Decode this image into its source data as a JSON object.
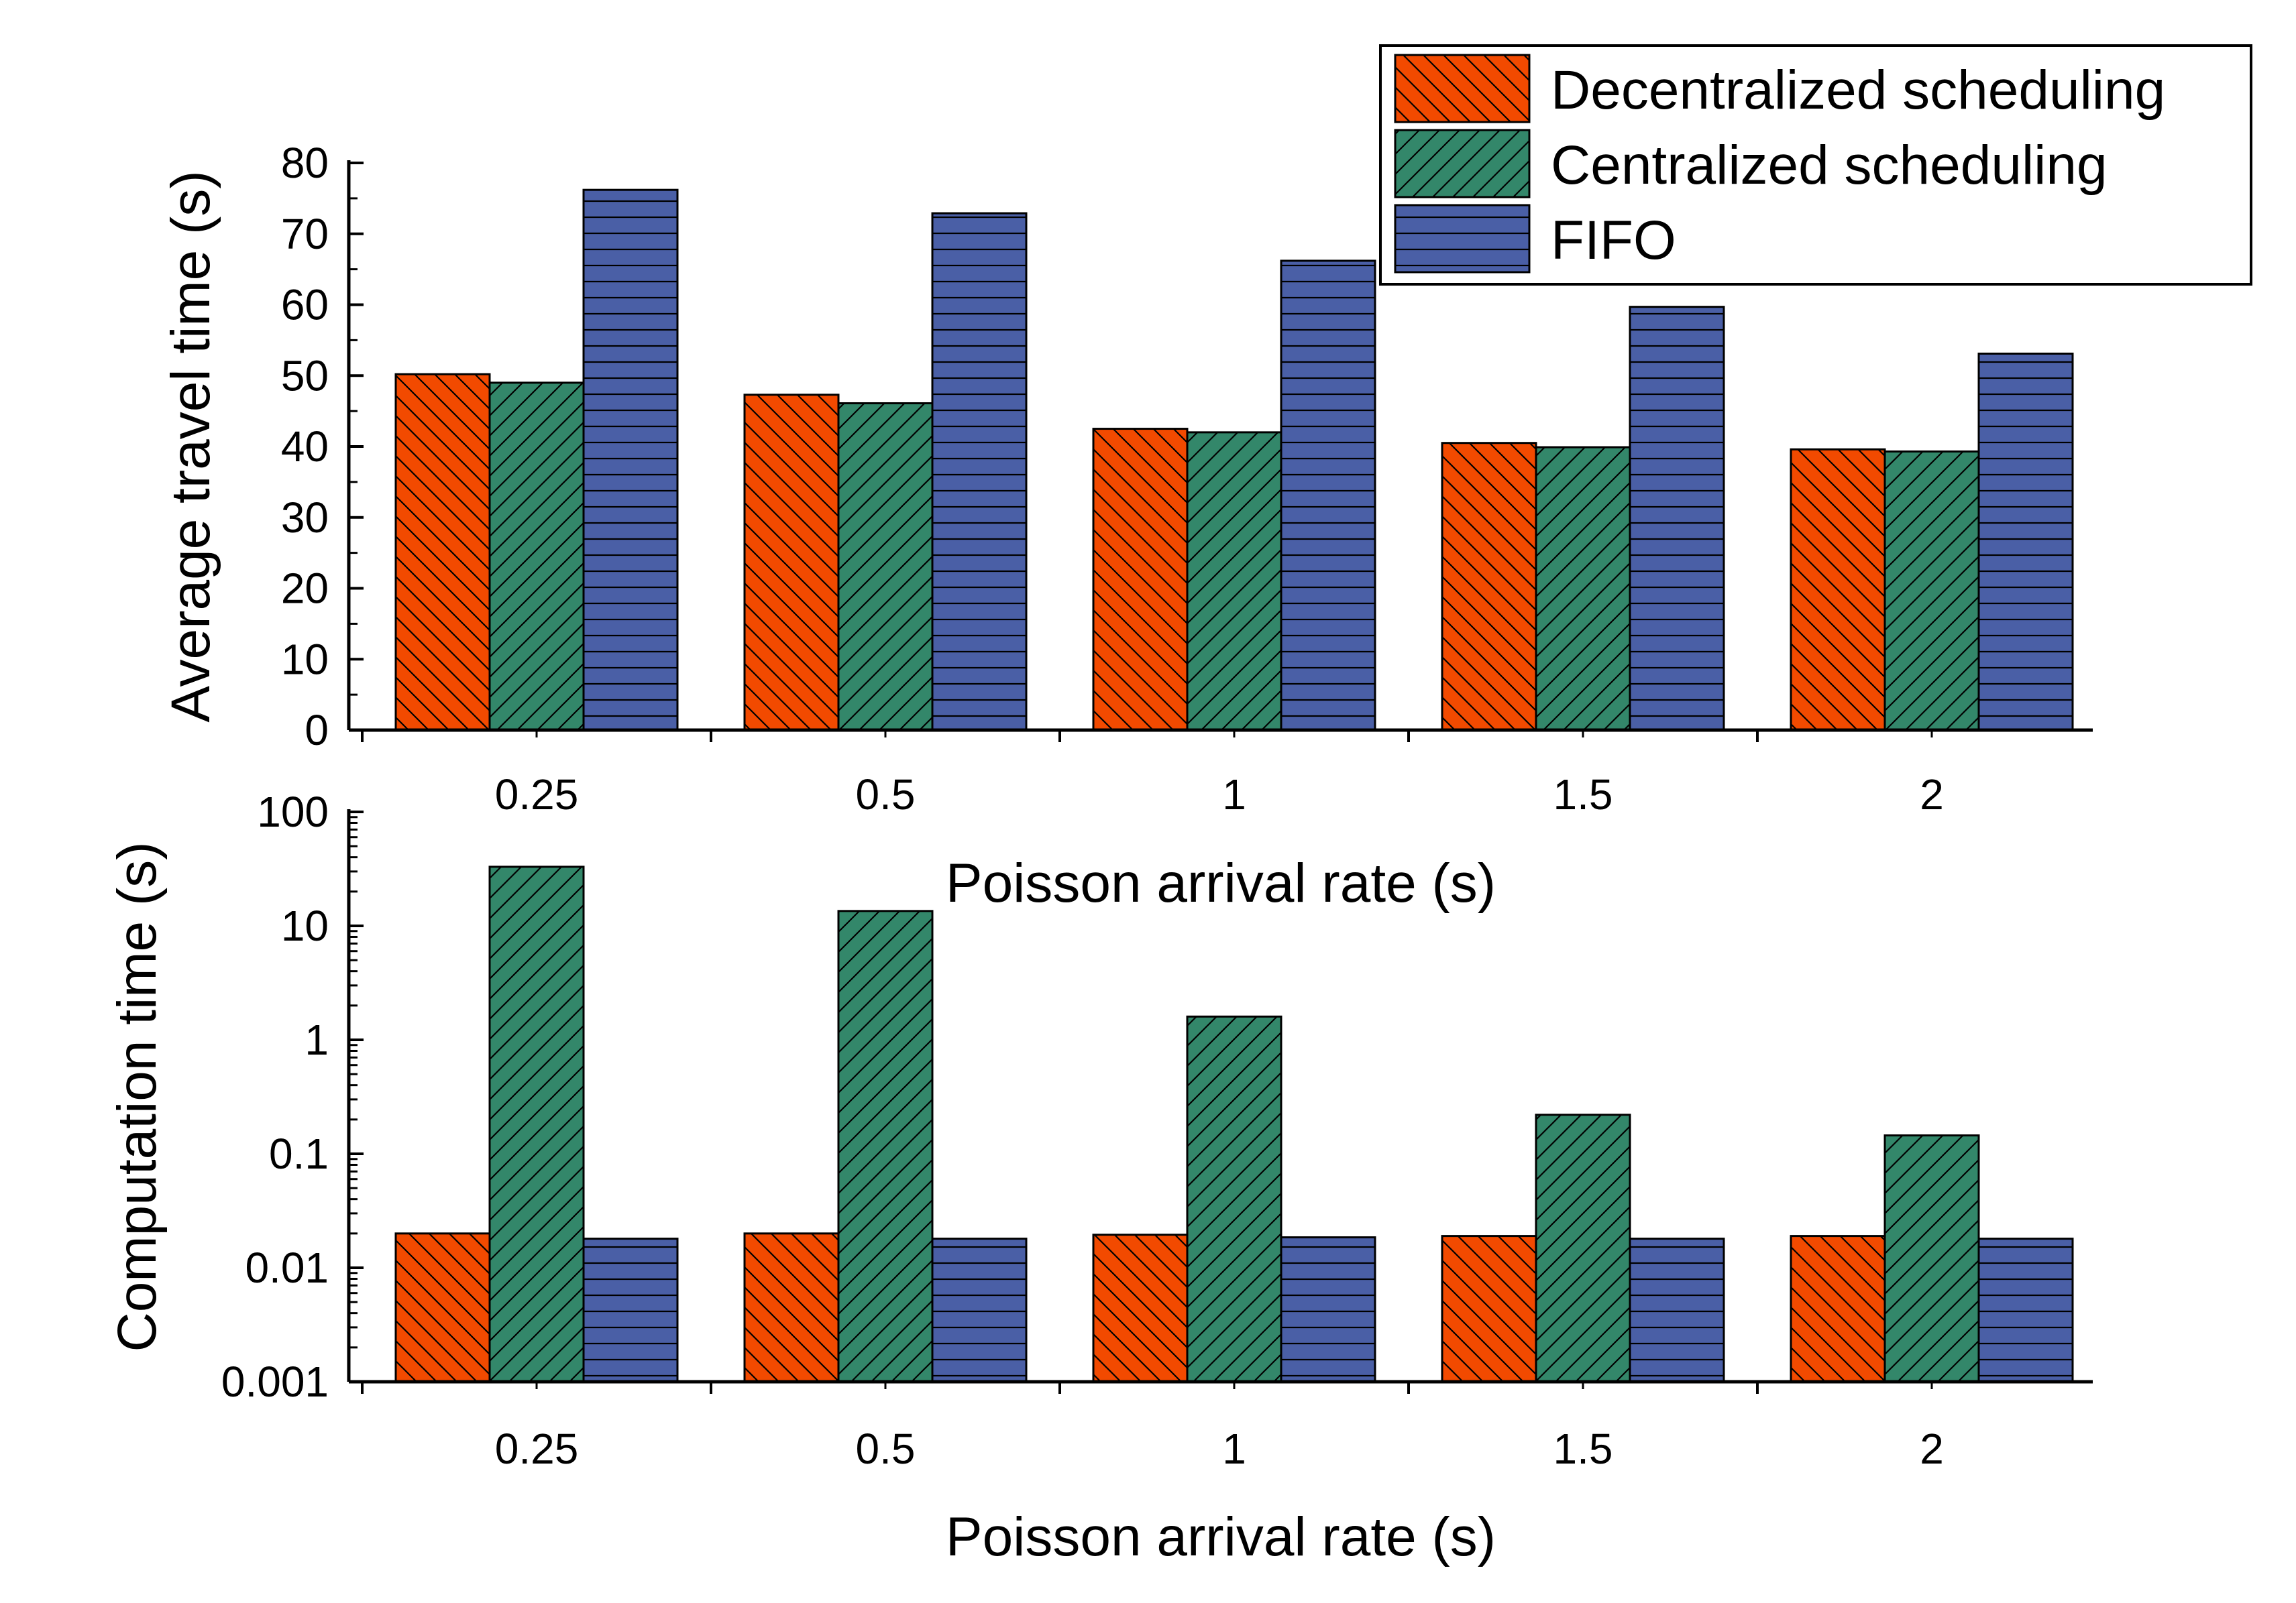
{
  "legend": {
    "items": [
      {
        "name": "Decentralized scheduling",
        "color": "#F24A00",
        "pattern": "backslash"
      },
      {
        "name": "Centralized scheduling",
        "color": "#33876A",
        "pattern": "slash"
      },
      {
        "name": "FIFO",
        "color": "#4A5FA6",
        "pattern": "horizontal"
      }
    ]
  },
  "chart_data": [
    {
      "type": "bar",
      "panel": "top",
      "title": "",
      "categories": [
        "0.25",
        "0.5",
        "1",
        "1.5",
        "2"
      ],
      "xlabel": "Poisson arrival rate (s)",
      "ylabel": "Average travel time (s)",
      "yscale": "linear",
      "ylim": [
        0,
        80
      ],
      "yticks": [
        "0",
        "10",
        "20",
        "30",
        "40",
        "50",
        "60",
        "70",
        "80"
      ],
      "grid": false,
      "legend_position": "top-right",
      "series": [
        {
          "name": "Decentralized scheduling",
          "values": [
            50.2,
            47.3,
            42.5,
            40.5,
            39.6
          ]
        },
        {
          "name": "Centralized scheduling",
          "values": [
            49.0,
            46.1,
            42.0,
            39.9,
            39.3
          ]
        },
        {
          "name": "FIFO",
          "values": [
            76.2,
            72.9,
            66.2,
            59.7,
            53.1
          ]
        }
      ]
    },
    {
      "type": "bar",
      "panel": "bottom",
      "title": "",
      "categories": [
        "0.25",
        "0.5",
        "1",
        "1.5",
        "2"
      ],
      "xlabel": "Poisson arrival rate (s)",
      "ylabel": "Computation time (s)",
      "yscale": "log",
      "ylim": [
        0.001,
        100
      ],
      "yticks": [
        "0.001",
        "0.01",
        "0.1",
        "1",
        "10",
        "100"
      ],
      "grid": false,
      "series": [
        {
          "name": "Decentralized scheduling",
          "values": [
            0.02,
            0.02,
            0.0195,
            0.019,
            0.019
          ]
        },
        {
          "name": "Centralized scheduling",
          "values": [
            33,
            13.5,
            1.6,
            0.22,
            0.145
          ]
        },
        {
          "name": "FIFO",
          "values": [
            0.018,
            0.018,
            0.0185,
            0.018,
            0.018
          ]
        }
      ]
    }
  ]
}
